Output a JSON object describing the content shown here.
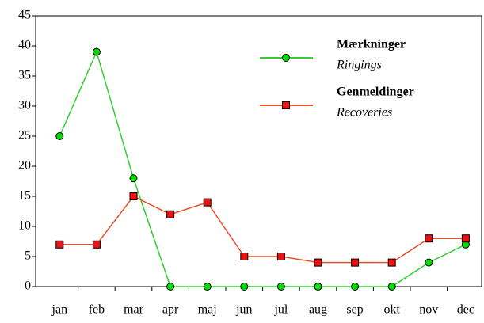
{
  "chart_data": {
    "type": "line",
    "categories": [
      "jan",
      "feb",
      "mar",
      "apr",
      "maj",
      "jun",
      "jul",
      "aug",
      "sep",
      "okt",
      "nov",
      "dec"
    ],
    "series": [
      {
        "name": "Mærkninger",
        "subtitle": "Ringings",
        "color": "#33cc33",
        "marker_color": "#00dd00",
        "marker": "circle",
        "values": [
          25,
          39,
          18,
          0,
          0,
          0,
          0,
          0,
          0,
          0,
          4,
          7
        ]
      },
      {
        "name": "Genmeldinger",
        "subtitle": "Recoveries",
        "color": "#e8502a",
        "marker_color": "#ee1111",
        "marker": "square",
        "values": [
          7,
          7,
          15,
          12,
          14,
          5,
          5,
          4,
          4,
          4,
          8,
          8
        ]
      }
    ],
    "ylim": [
      0,
      45
    ],
    "yticks": [
      0,
      5,
      10,
      15,
      20,
      25,
      30,
      35,
      40,
      45
    ],
    "grid": false,
    "legend": "upper right"
  }
}
